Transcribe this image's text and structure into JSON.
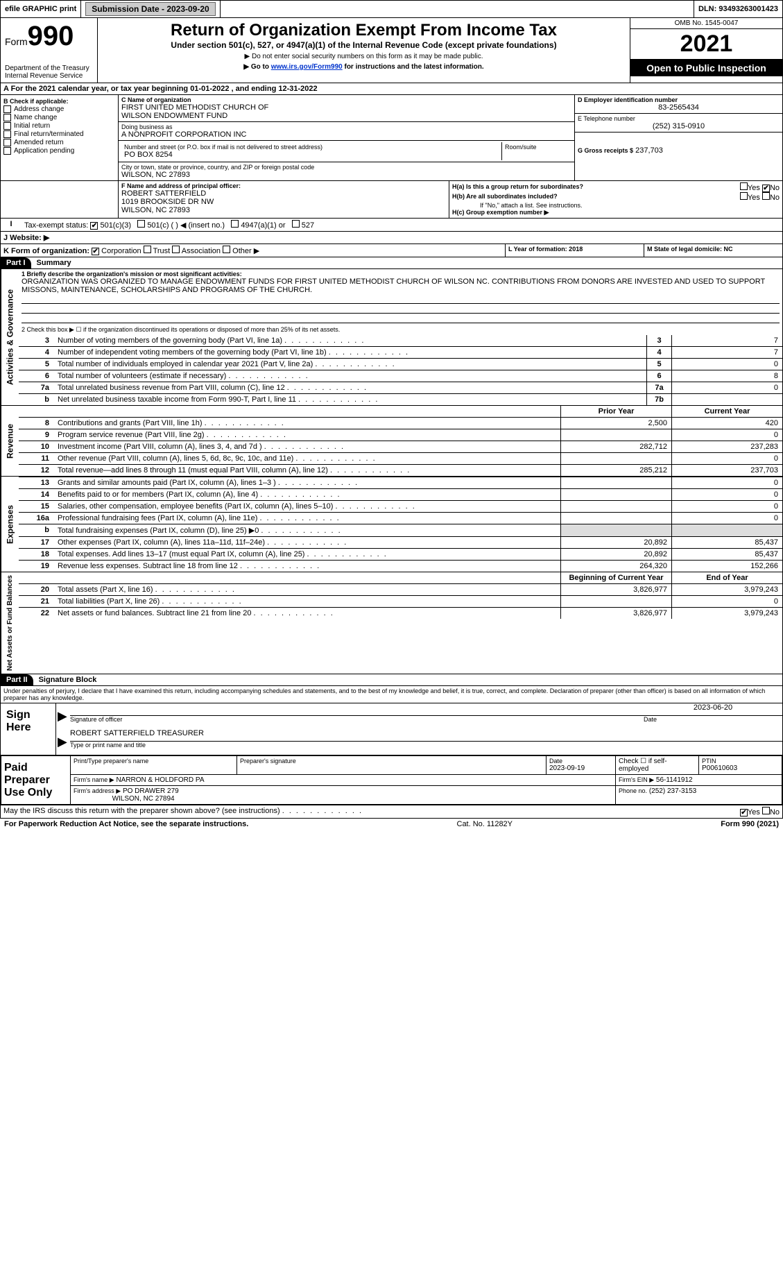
{
  "topbar": {
    "efile_label": "efile GRAPHIC print",
    "submission_label": "Submission Date - 2023-09-20",
    "dln_label": "DLN: 93493263001423"
  },
  "header": {
    "form_word": "Form",
    "form_num": "990",
    "dept1": "Department of the Treasury",
    "dept2": "Internal Revenue Service",
    "title": "Return of Organization Exempt From Income Tax",
    "sub1": "Under section 501(c), 527, or 4947(a)(1) of the Internal Revenue Code (except private foundations)",
    "sub2": "▶ Do not enter social security numbers on this form as it may be made public.",
    "sub3_pre": "▶ Go to ",
    "sub3_link": "www.irs.gov/Form990",
    "sub3_post": " for instructions and the latest information.",
    "omb": "OMB No. 1545-0047",
    "year": "2021",
    "open_pub": "Open to Public Inspection"
  },
  "section_a": {
    "text": "A For the 2021 calendar year, or tax year beginning 01-01-2022   , and ending 12-31-2022"
  },
  "col_b": {
    "header": "B Check if applicable:",
    "items": [
      "Address change",
      "Name change",
      "Initial return",
      "Final return/terminated",
      "Amended return",
      "Application pending"
    ]
  },
  "col_c": {
    "name_label": "C Name of organization",
    "name1": "FIRST UNITED METHODIST CHURCH OF",
    "name2": "WILSON ENDOWMENT FUND",
    "dba_label": "Doing business as",
    "dba": "A NONPROFIT CORPORATION INC",
    "addr_label": "Number and street (or P.O. box if mail is not delivered to street address)",
    "room_label": "Room/suite",
    "addr": "PO BOX 8254",
    "city_label": "City or town, state or province, country, and ZIP or foreign postal code",
    "city": "WILSON, NC  27893"
  },
  "col_d": {
    "label": "D Employer identification number",
    "ein": "83-2565434"
  },
  "col_e": {
    "label": "E Telephone number",
    "phone": "(252) 315-0910"
  },
  "col_g": {
    "label": "G Gross receipts $",
    "val": "237,703"
  },
  "row_fh": {
    "f_label": "F Name and address of principal officer:",
    "f_name": "ROBERT SATTERFIELD",
    "f_addr1": "1019 BROOKSIDE DR NW",
    "f_addr2": "WILSON, NC  27893",
    "ha_label": "H(a)  Is this a group return for subordinates?",
    "hb_label": "H(b)  Are all subordinates included?",
    "hb_note": "If \"No,\" attach a list. See instructions.",
    "hc_label": "H(c)  Group exemption number ▶",
    "yes": "Yes",
    "no": "No"
  },
  "row_i": {
    "label": "Tax-exempt status:",
    "o1": "501(c)(3)",
    "o2": "501(c) (    ) ◀ (insert no.)",
    "o3": "4947(a)(1) or",
    "o4": "527"
  },
  "row_j": {
    "label": "J   Website: ▶"
  },
  "row_k": {
    "k_label": "K Form of organization:",
    "k_opts": [
      "Corporation",
      "Trust",
      "Association",
      "Other ▶"
    ],
    "l_label": "L Year of formation: 2018",
    "m_label": "M State of legal domicile: NC"
  },
  "part1": {
    "bar": "Part I",
    "title": "Summary",
    "vert_ag": "Activities & Governance",
    "vert_rev": "Revenue",
    "vert_exp": "Expenses",
    "vert_na": "Net Assets or Fund Balances",
    "l1_label": "1 Briefly describe the organization's mission or most significant activities:",
    "mission": "ORGANIZATION WAS ORGANIZED TO MANAGE ENDOWMENT FUNDS FOR FIRST UNITED METHODIST CHURCH OF WILSON NC. CONTRIBUTIONS FROM DONORS ARE INVESTED AND USED TO SUPPORT MISSONS, MAINTENANCE, SCHOLARSHIPS AND PROGRAMS OF THE CHURCH.",
    "l2": "2  Check this box ▶ ☐ if the organization discontinued its operations or disposed of more than 25% of its net assets.",
    "rows_ag": [
      {
        "n": "3",
        "d": "Number of voting members of the governing body (Part VI, line 1a)",
        "b": "3",
        "v": "7"
      },
      {
        "n": "4",
        "d": "Number of independent voting members of the governing body (Part VI, line 1b)",
        "b": "4",
        "v": "7"
      },
      {
        "n": "5",
        "d": "Total number of individuals employed in calendar year 2021 (Part V, line 2a)",
        "b": "5",
        "v": "0"
      },
      {
        "n": "6",
        "d": "Total number of volunteers (estimate if necessary)",
        "b": "6",
        "v": "8"
      },
      {
        "n": "7a",
        "d": "Total unrelated business revenue from Part VIII, column (C), line 12",
        "b": "7a",
        "v": "0"
      },
      {
        "n": "b",
        "d": "Net unrelated business taxable income from Form 990-T, Part I, line 11",
        "b": "7b",
        "v": ""
      }
    ],
    "hdr_prior": "Prior Year",
    "hdr_curr": "Current Year",
    "rows_rev": [
      {
        "n": "8",
        "d": "Contributions and grants (Part VIII, line 1h)",
        "p": "2,500",
        "c": "420"
      },
      {
        "n": "9",
        "d": "Program service revenue (Part VIII, line 2g)",
        "p": "",
        "c": "0"
      },
      {
        "n": "10",
        "d": "Investment income (Part VIII, column (A), lines 3, 4, and 7d )",
        "p": "282,712",
        "c": "237,283"
      },
      {
        "n": "11",
        "d": "Other revenue (Part VIII, column (A), lines 5, 6d, 8c, 9c, 10c, and 11e)",
        "p": "",
        "c": "0"
      },
      {
        "n": "12",
        "d": "Total revenue—add lines 8 through 11 (must equal Part VIII, column (A), line 12)",
        "p": "285,212",
        "c": "237,703"
      }
    ],
    "rows_exp": [
      {
        "n": "13",
        "d": "Grants and similar amounts paid (Part IX, column (A), lines 1–3 )",
        "p": "",
        "c": "0"
      },
      {
        "n": "14",
        "d": "Benefits paid to or for members (Part IX, column (A), line 4)",
        "p": "",
        "c": "0"
      },
      {
        "n": "15",
        "d": "Salaries, other compensation, employee benefits (Part IX, column (A), lines 5–10)",
        "p": "",
        "c": "0"
      },
      {
        "n": "16a",
        "d": "Professional fundraising fees (Part IX, column (A), line 11e)",
        "p": "",
        "c": "0"
      },
      {
        "n": "b",
        "d": "Total fundraising expenses (Part IX, column (D), line 25) ▶0",
        "p": "shade",
        "c": "shade"
      },
      {
        "n": "17",
        "d": "Other expenses (Part IX, column (A), lines 11a–11d, 11f–24e)",
        "p": "20,892",
        "c": "85,437"
      },
      {
        "n": "18",
        "d": "Total expenses. Add lines 13–17 (must equal Part IX, column (A), line 25)",
        "p": "20,892",
        "c": "85,437"
      },
      {
        "n": "19",
        "d": "Revenue less expenses. Subtract line 18 from line 12",
        "p": "264,320",
        "c": "152,266"
      }
    ],
    "hdr_beg": "Beginning of Current Year",
    "hdr_end": "End of Year",
    "rows_na": [
      {
        "n": "20",
        "d": "Total assets (Part X, line 16)",
        "p": "3,826,977",
        "c": "3,979,243"
      },
      {
        "n": "21",
        "d": "Total liabilities (Part X, line 26)",
        "p": "",
        "c": "0"
      },
      {
        "n": "22",
        "d": "Net assets or fund balances. Subtract line 21 from line 20",
        "p": "3,826,977",
        "c": "3,979,243"
      }
    ]
  },
  "part2": {
    "bar": "Part II",
    "title": "Signature Block",
    "decl": "Under penalties of perjury, I declare that I have examined this return, including accompanying schedules and statements, and to the best of my knowledge and belief, it is true, correct, and complete. Declaration of preparer (other than officer) is based on all information of which preparer has any knowledge.",
    "sign_here": "Sign Here",
    "sig_off": "Signature of officer",
    "sig_date": "2023-06-20",
    "date_label": "Date",
    "sig_name": "ROBERT SATTERFIELD  TREASURER",
    "sig_type": "Type or print name and title",
    "paid": "Paid Preparer Use Only",
    "prep_name_label": "Print/Type preparer's name",
    "prep_sig_label": "Preparer's signature",
    "prep_date_label": "Date",
    "prep_date": "2023-09-19",
    "check_self": "Check ☐ if self-employed",
    "ptin_label": "PTIN",
    "ptin": "P00610603",
    "firm_name_label": "Firm's name    ▶",
    "firm_name": "NARRON & HOLDFORD PA",
    "firm_ein_label": "Firm's EIN ▶",
    "firm_ein": "56-1141912",
    "firm_addr_label": "Firm's address ▶",
    "firm_addr1": "PO DRAWER 279",
    "firm_addr2": "WILSON, NC  27894",
    "firm_phone_label": "Phone no.",
    "firm_phone": "(252) 237-3153",
    "may_irs": "May the IRS discuss this return with the preparer shown above? (see instructions)"
  },
  "footer": {
    "left": "For Paperwork Reduction Act Notice, see the separate instructions.",
    "mid": "Cat. No. 11282Y",
    "right": "Form 990 (2021)"
  }
}
